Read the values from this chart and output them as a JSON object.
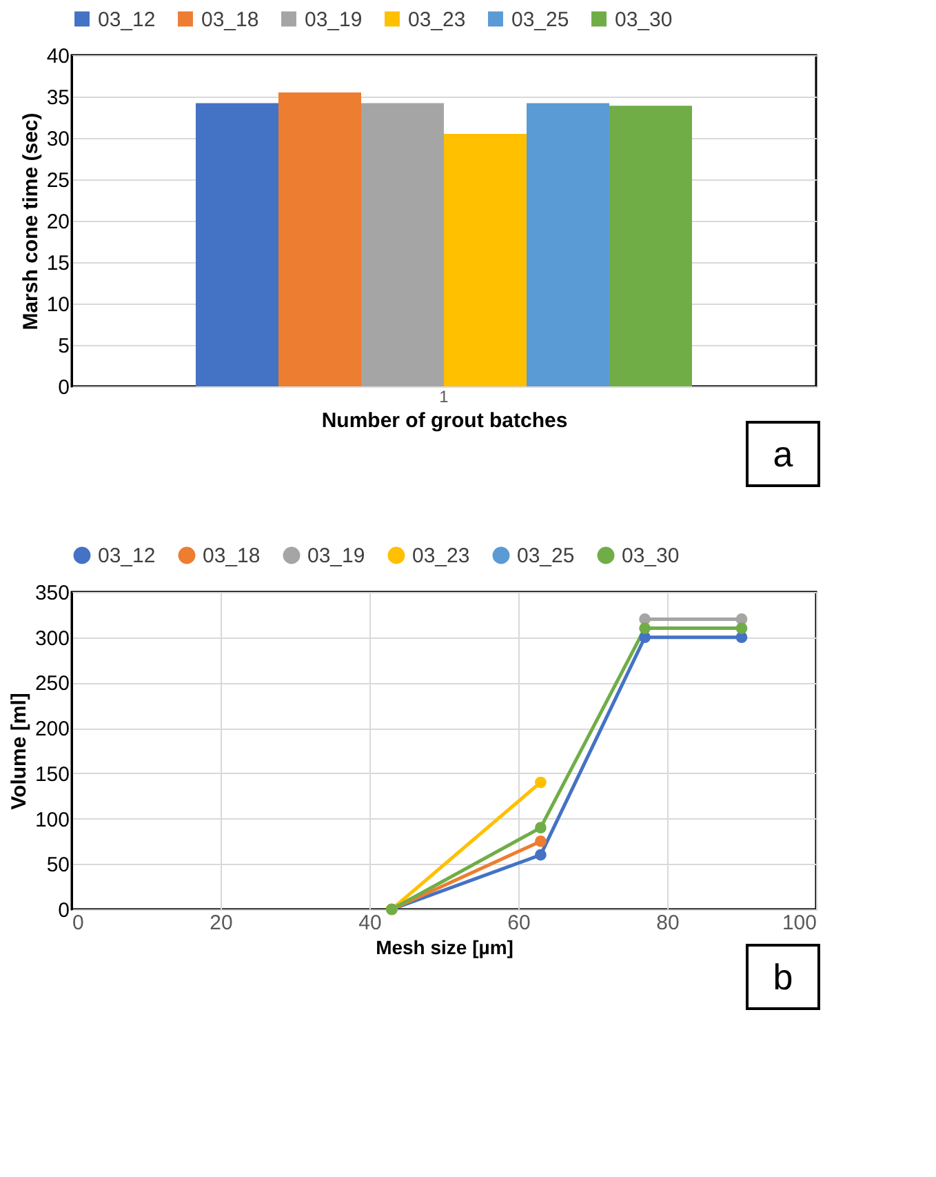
{
  "chart_data": [
    {
      "type": "bar",
      "xlabel": "Number of grout batches",
      "ylabel": "Marsh cone time (sec)",
      "categories": [
        "1"
      ],
      "ylim": [
        0,
        40
      ],
      "yticks": [
        0,
        5,
        10,
        15,
        20,
        25,
        30,
        35,
        40
      ],
      "grid": "y",
      "legend": "top",
      "annotations": [
        "a"
      ],
      "series": [
        {
          "name": "03_12",
          "color": "#4472c4",
          "values": [
            34.2
          ]
        },
        {
          "name": "03_18",
          "color": "#ed7d31",
          "values": [
            35.5
          ]
        },
        {
          "name": "03_19",
          "color": "#a5a5a5",
          "values": [
            34.2
          ]
        },
        {
          "name": "03_23",
          "color": "#ffc000",
          "values": [
            30.5
          ]
        },
        {
          "name": "03_25",
          "color": "#5b9bd5",
          "values": [
            34.2
          ]
        },
        {
          "name": "03_30",
          "color": "#70ad47",
          "values": [
            33.9
          ]
        }
      ]
    },
    {
      "type": "line",
      "xlabel": "Mesh size [µm]",
      "ylabel": "Volume [ml]",
      "x": [
        43,
        63,
        77,
        90
      ],
      "xlim": [
        0,
        100
      ],
      "xticks": [
        0,
        20,
        40,
        60,
        80,
        100
      ],
      "ylim": [
        0,
        350
      ],
      "yticks": [
        0,
        50,
        100,
        150,
        200,
        250,
        300,
        350
      ],
      "grid": true,
      "legend": "top",
      "marker": "circle",
      "annotations": [
        "b"
      ],
      "series": [
        {
          "name": "03_12",
          "color": "#4472c4",
          "values": [
            0,
            60,
            300,
            300
          ]
        },
        {
          "name": "03_18",
          "color": "#ed7d31",
          "values": [
            0,
            75,
            null,
            null
          ]
        },
        {
          "name": "03_19",
          "color": "#a5a5a5",
          "values": [
            0,
            null,
            320,
            320
          ]
        },
        {
          "name": "03_23",
          "color": "#ffc000",
          "values": [
            0,
            140,
            null,
            null
          ]
        },
        {
          "name": "03_25",
          "color": "#5b9bd5",
          "values": [
            null,
            null,
            null,
            null
          ]
        },
        {
          "name": "03_30",
          "color": "#70ad47",
          "values": [
            0,
            90,
            310,
            310
          ]
        }
      ]
    }
  ]
}
